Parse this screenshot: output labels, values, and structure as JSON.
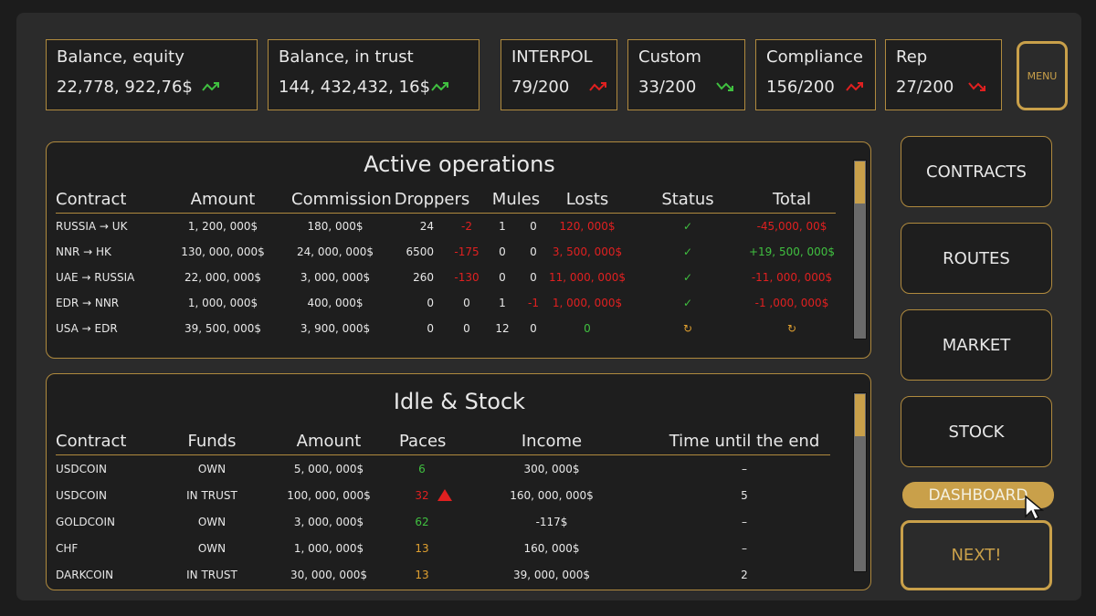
{
  "stats": [
    {
      "label": "Balance, equity",
      "value": "22,778, 922,76$"
    },
    {
      "label": "Balance, in trust",
      "value": "144, 432,432, 16$"
    },
    {
      "label": "INTERPOL",
      "value": "79/200"
    },
    {
      "label": "Custom",
      "value": "33/200"
    },
    {
      "label": "Compliance",
      "value": "156/200"
    },
    {
      "label": "Rep",
      "value": "27/200"
    }
  ],
  "menu": "MENU",
  "active_operations": {
    "title": "Active operations",
    "headers": [
      "Contract",
      "Amount",
      "Commission",
      "Droppers",
      "Mules",
      "Losts",
      "Status",
      "Total"
    ],
    "rows": [
      [
        "RUSSIA → UK",
        "1, 200, 000$",
        "180, 000$",
        "24",
        "-2",
        "1",
        "0",
        "120, 000$",
        "✓",
        "-45,000, 00$"
      ],
      [
        "NNR → HK",
        "130, 000, 000$",
        "24, 000, 000$",
        "6500",
        "-175",
        "0",
        "0",
        "3, 500, 000$",
        "✓",
        "+19, 500, 000$"
      ],
      [
        "UAE → RUSSIA",
        "22, 000, 000$",
        "3, 000, 000$",
        "260",
        "-130",
        "0",
        "0",
        "11, 000, 000$",
        "✓",
        "-11, 000, 000$"
      ],
      [
        "EDR → NNR",
        "1, 000, 000$",
        "400, 000$",
        "0",
        "0",
        "1",
        "-1",
        "1, 000, 000$",
        "✓",
        "-1 ,000, 000$"
      ],
      [
        "USA → EDR",
        "39, 500, 000$",
        "3, 900, 000$",
        "0",
        "0",
        "12",
        "0",
        "0",
        "↻",
        "↻"
      ]
    ]
  },
  "idle_stock": {
    "title": "Idle & Stock",
    "headers": [
      "Contract",
      "Funds",
      "Amount",
      "Paces",
      "Income",
      "Time until the end"
    ],
    "rows": [
      [
        "USDCOIN",
        "OWN",
        "5, 000, 000$",
        "6",
        "300, 000$",
        "–"
      ],
      [
        "USDCOIN",
        "IN TRUST",
        "100, 000, 000$",
        "32",
        "160, 000, 000$",
        "5"
      ],
      [
        "GOLDCOIN",
        "OWN",
        "3, 000, 000$",
        "62",
        "-117$",
        "–"
      ],
      [
        "CHF",
        "OWN",
        "1, 000, 000$",
        "13",
        "160, 000$",
        "–"
      ],
      [
        "DARKCOIN",
        "IN TRUST",
        "30, 000, 000$",
        "13",
        "39, 000, 000$",
        "2"
      ]
    ]
  },
  "nav": [
    "CONTRACTS",
    "ROUTES",
    "MARKET",
    "STOCK",
    "DASHBOARD"
  ],
  "next": "NEXT!"
}
